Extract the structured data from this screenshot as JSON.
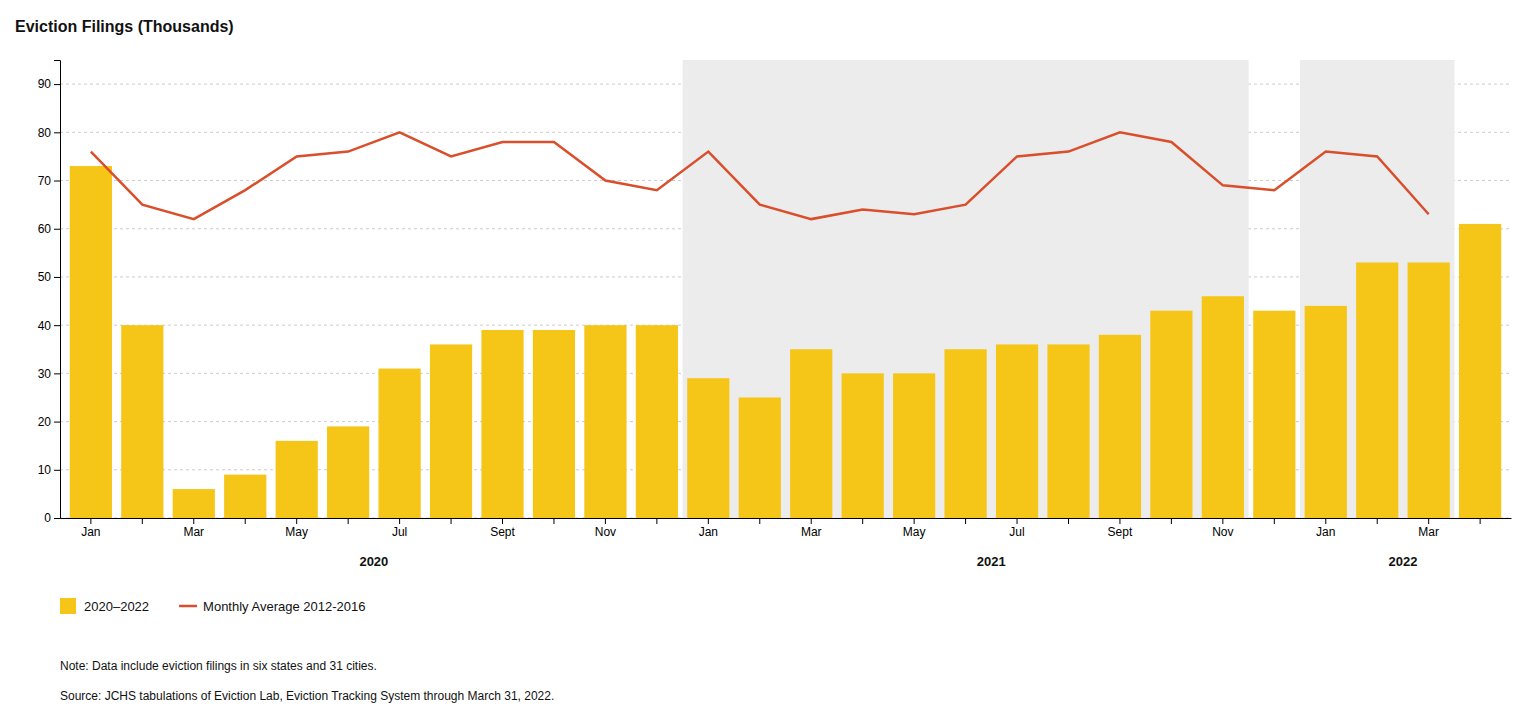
{
  "chart_data": {
    "type": "bar",
    "title": "Eviction Filings (Thousands)",
    "categories": [
      "Jan",
      null,
      "Mar",
      null,
      "May",
      null,
      "Jul",
      null,
      "Sept",
      null,
      "Nov",
      null,
      "Jan",
      null,
      "Mar",
      null,
      "May",
      null,
      "Jul",
      null,
      "Sept",
      null,
      "Nov",
      null,
      "Jan",
      null,
      "Mar",
      null
    ],
    "series": [
      {
        "name": "2020–2022",
        "type": "bar",
        "color": "#F5C518",
        "values": [
          73,
          40,
          6,
          9,
          16,
          19,
          31,
          36,
          39,
          39,
          40,
          40,
          29,
          25,
          35,
          30,
          30,
          35,
          36,
          36,
          38,
          43,
          46,
          43,
          44,
          53,
          53,
          61
        ]
      },
      {
        "name": "Monthly Average 2012-2016",
        "type": "line",
        "color": "#D94F2B",
        "values": [
          76,
          65,
          62,
          68,
          75,
          76,
          80,
          75,
          78,
          78,
          70,
          68,
          76,
          65,
          62,
          64,
          63,
          65,
          75,
          76,
          80,
          78,
          69,
          68,
          76,
          75,
          63,
          null
        ]
      }
    ],
    "shading": [
      {
        "start": 12,
        "end": 23
      },
      {
        "start": 24,
        "end": 27
      }
    ],
    "annotations": [
      {
        "text": "2020",
        "x": 5.5
      },
      {
        "text": "2021",
        "x": 17.5
      },
      {
        "text": "2022",
        "x": 25.5
      }
    ],
    "note": "Note: Data include eviction filings in six states and 31 cities.",
    "source": "Source: JCHS tabulations of Eviction Lab, Eviction Tracking System through March 31, 2022.",
    "ylim": [
      0,
      95
    ],
    "yticks": [
      0,
      10,
      20,
      30,
      40,
      50,
      60,
      70,
      80,
      90
    ],
    "grid": true,
    "legend": "bottom"
  }
}
